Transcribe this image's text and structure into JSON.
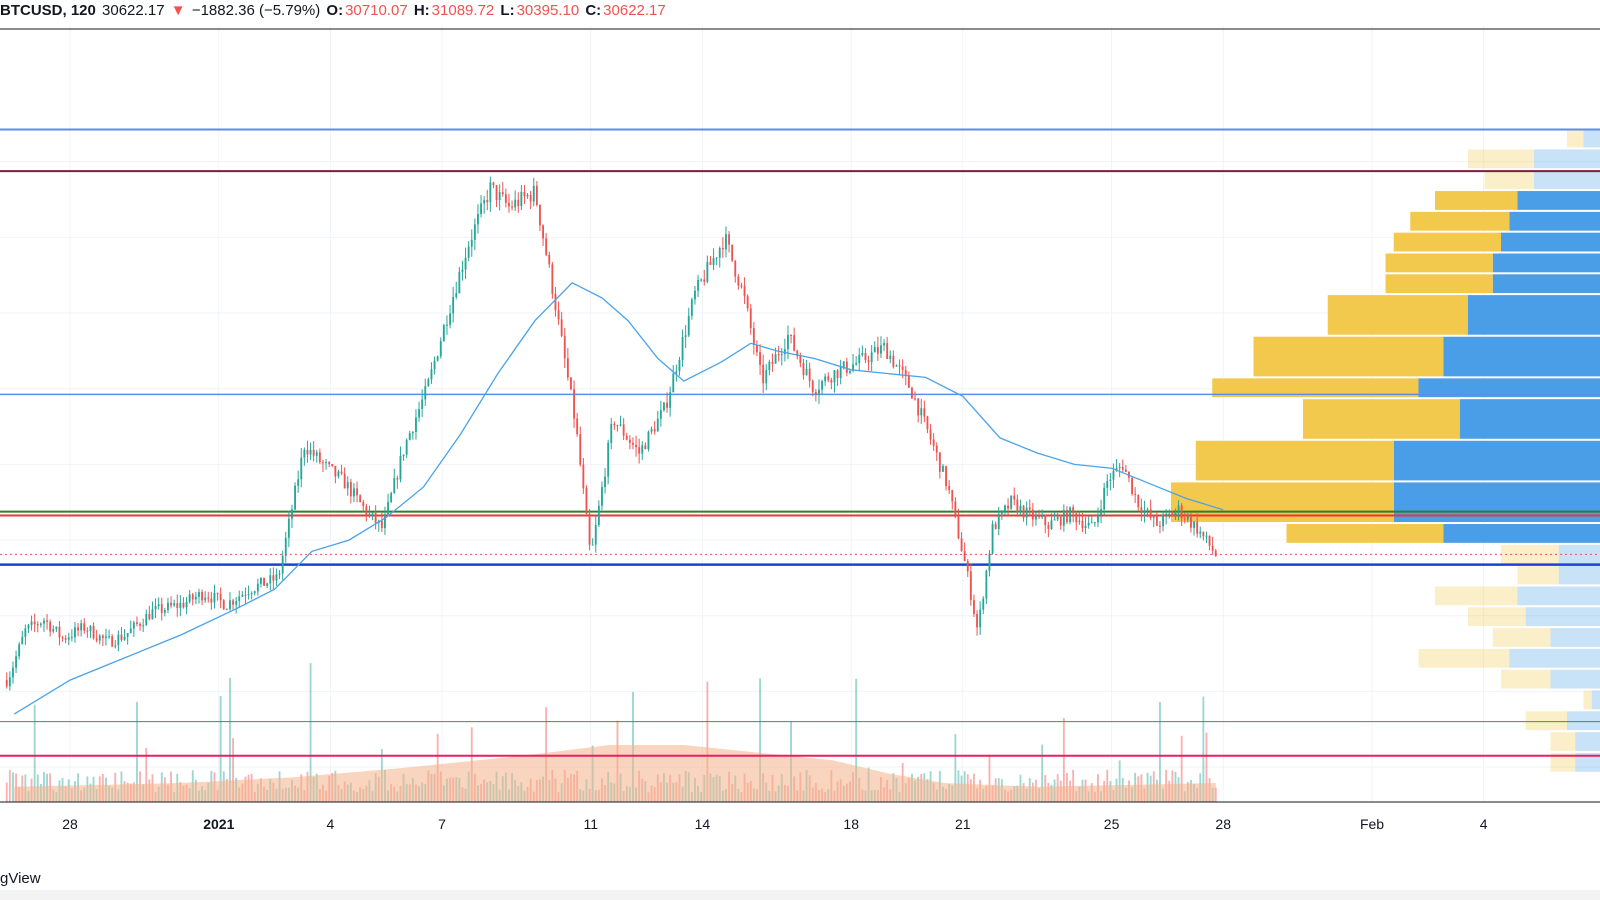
{
  "header": {
    "symbol": "BTCUSD, 120",
    "last": "30622.17",
    "change_arrow": "▼",
    "change": "−1882.36 (−5.79%)",
    "o_label": "O:",
    "o_value": "30710.07",
    "h_label": "H:",
    "h_value": "31089.72",
    "l_label": "L:",
    "l_value": "30395.10",
    "c_label": "C:",
    "c_value": "30622.17"
  },
  "watermark": "gView",
  "colors": {
    "up": "#26a69a",
    "down": "#ef5350",
    "ma": "#4aa3e8",
    "vp_up": "#f2c94c",
    "vp_down": "#4a9ee8",
    "vol_ma": "#f4b28a"
  },
  "icons": {
    "change_arrow": "triangle-down-icon"
  },
  "chart_data": {
    "type": "candlestick",
    "symbol": "BTCUSD",
    "timeframe": "120",
    "x_ticks": [
      {
        "label": "28",
        "t": 0.0
      },
      {
        "label": "2021",
        "t": 4.0,
        "bold": true
      },
      {
        "label": "4",
        "t": 7.0
      },
      {
        "label": "7",
        "t": 10.0
      },
      {
        "label": "11",
        "t": 14.0
      },
      {
        "label": "14",
        "t": 17.0
      },
      {
        "label": "18",
        "t": 21.0
      },
      {
        "label": "21",
        "t": 24.0
      },
      {
        "label": "25",
        "t": 28.0
      },
      {
        "label": "28",
        "t": 31.0
      },
      {
        "label": "Feb",
        "t": 35.0
      },
      {
        "label": "4",
        "t": 38.0
      }
    ],
    "x_range_days": [
      -1.5,
      39.2
    ],
    "last_bar_day": 30.8,
    "y_range": [
      24500,
      43000
    ],
    "price_path": [
      [
        -1.7,
        27300
      ],
      [
        -1.6,
        27500
      ],
      [
        -1.2,
        28600
      ],
      [
        -0.7,
        28900
      ],
      [
        -0.2,
        28400
      ],
      [
        0.4,
        28700
      ],
      [
        1.0,
        28300
      ],
      [
        1.5,
        28500
      ],
      [
        2.2,
        29100
      ],
      [
        3.0,
        29300
      ],
      [
        3.6,
        29600
      ],
      [
        4.2,
        29300
      ],
      [
        4.8,
        29700
      ],
      [
        5.6,
        30000
      ],
      [
        6.3,
        33500
      ],
      [
        6.8,
        33000
      ],
      [
        7.4,
        32500
      ],
      [
        8.0,
        31700
      ],
      [
        8.4,
        31300
      ],
      [
        9.0,
        33500
      ],
      [
        9.6,
        35000
      ],
      [
        10.1,
        36800
      ],
      [
        10.7,
        38800
      ],
      [
        11.3,
        40300
      ],
      [
        11.8,
        39800
      ],
      [
        12.5,
        40200
      ],
      [
        13.0,
        37500
      ],
      [
        13.6,
        34000
      ],
      [
        14.0,
        30500
      ],
      [
        14.6,
        34200
      ],
      [
        15.3,
        33300
      ],
      [
        16.0,
        34500
      ],
      [
        16.8,
        37500
      ],
      [
        17.6,
        39000
      ],
      [
        18.1,
        37500
      ],
      [
        18.6,
        35200
      ],
      [
        19.3,
        36400
      ],
      [
        20.0,
        35000
      ],
      [
        20.5,
        35400
      ],
      [
        21.2,
        35700
      ],
      [
        21.9,
        36100
      ],
      [
        22.6,
        35000
      ],
      [
        23.2,
        33500
      ],
      [
        23.6,
        32400
      ],
      [
        24.1,
        30200
      ],
      [
        24.4,
        28600
      ],
      [
        24.8,
        31300
      ],
      [
        25.3,
        32000
      ],
      [
        25.7,
        31700
      ],
      [
        26.3,
        31400
      ],
      [
        26.9,
        31700
      ],
      [
        27.5,
        31300
      ],
      [
        27.9,
        32600
      ],
      [
        28.3,
        33000
      ],
      [
        28.7,
        32000
      ],
      [
        29.2,
        31400
      ],
      [
        29.8,
        31800
      ],
      [
        30.3,
        31300
      ],
      [
        30.8,
        30622
      ]
    ],
    "moving_average": [
      [
        -1.5,
        26400
      ],
      [
        0.0,
        27300
      ],
      [
        1.5,
        27900
      ],
      [
        3.0,
        28500
      ],
      [
        4.5,
        29200
      ],
      [
        5.5,
        29700
      ],
      [
        6.5,
        30700
      ],
      [
        7.5,
        31000
      ],
      [
        8.5,
        31600
      ],
      [
        9.5,
        32400
      ],
      [
        10.5,
        33800
      ],
      [
        11.5,
        35400
      ],
      [
        12.5,
        36800
      ],
      [
        13.5,
        37800
      ],
      [
        14.3,
        37400
      ],
      [
        15.0,
        36800
      ],
      [
        15.8,
        35800
      ],
      [
        16.5,
        35200
      ],
      [
        17.5,
        35700
      ],
      [
        18.3,
        36200
      ],
      [
        19.0,
        36000
      ],
      [
        20.0,
        35800
      ],
      [
        21.0,
        35500
      ],
      [
        22.0,
        35400
      ],
      [
        23.0,
        35300
      ],
      [
        24.0,
        34800
      ],
      [
        25.0,
        33700
      ],
      [
        26.0,
        33300
      ],
      [
        27.0,
        33000
      ],
      [
        28.0,
        32900
      ],
      [
        29.0,
        32500
      ],
      [
        30.0,
        32100
      ],
      [
        31.0,
        31800
      ]
    ],
    "horizontal_levels": [
      {
        "price": 41850,
        "color": "#5b8def",
        "width": 2
      },
      {
        "price": 40750,
        "color": "#7a1f3d",
        "width": 2
      },
      {
        "price": 34850,
        "color": "#5b8def",
        "width": 1.5
      },
      {
        "price": 31750,
        "color": "#2e7d32",
        "width": 2
      },
      {
        "price": 31650,
        "color": "#e53935",
        "width": 2
      },
      {
        "price": 30350,
        "color": "#1e40d8",
        "width": 2.5
      },
      {
        "price": 26200,
        "color": "#558b2f",
        "width": 1
      },
      {
        "price": 25300,
        "color": "#e91e63",
        "width": 2
      }
    ],
    "last_price_line": 30622.17,
    "volume_profile": {
      "rows": [
        {
          "low": 41350,
          "high": 41850,
          "up": 0.02,
          "down": 0.02,
          "faded": true
        },
        {
          "low": 40800,
          "high": 41350,
          "up": 0.08,
          "down": 0.08,
          "faded": true
        },
        {
          "low": 40250,
          "high": 40800,
          "up": 0.06,
          "down": 0.08,
          "faded": true
        },
        {
          "low": 39700,
          "high": 40250,
          "up": 0.1,
          "down": 0.1,
          "faded": false
        },
        {
          "low": 39150,
          "high": 39700,
          "up": 0.12,
          "down": 0.11,
          "faded": false
        },
        {
          "low": 38600,
          "high": 39150,
          "up": 0.13,
          "down": 0.12,
          "faded": false
        },
        {
          "low": 38050,
          "high": 38600,
          "up": 0.13,
          "down": 0.13,
          "faded": false
        },
        {
          "low": 37500,
          "high": 38050,
          "up": 0.13,
          "down": 0.13,
          "faded": false
        },
        {
          "low": 36400,
          "high": 37500,
          "up": 0.17,
          "down": 0.16,
          "faded": false
        },
        {
          "low": 35300,
          "high": 36400,
          "up": 0.23,
          "down": 0.19,
          "faded": false
        },
        {
          "low": 34750,
          "high": 35300,
          "up": 0.25,
          "down": 0.22,
          "faded": false
        },
        {
          "low": 33650,
          "high": 34750,
          "up": 0.19,
          "down": 0.17,
          "faded": false
        },
        {
          "low": 32550,
          "high": 33650,
          "up": 0.24,
          "down": 0.25,
          "faded": false
        },
        {
          "low": 31450,
          "high": 32550,
          "up": 0.27,
          "down": 0.25,
          "faded": false
        },
        {
          "low": 30900,
          "high": 31450,
          "up": 0.19,
          "down": 0.19,
          "faded": false
        },
        {
          "low": 30350,
          "high": 30900,
          "up": 0.07,
          "down": 0.05,
          "faded": true
        },
        {
          "low": 29800,
          "high": 30350,
          "up": 0.05,
          "down": 0.05,
          "faded": true
        },
        {
          "low": 29250,
          "high": 29800,
          "up": 0.1,
          "down": 0.1,
          "faded": true
        },
        {
          "low": 28700,
          "high": 29250,
          "up": 0.07,
          "down": 0.09,
          "faded": true
        },
        {
          "low": 28150,
          "high": 28700,
          "up": 0.07,
          "down": 0.06,
          "faded": true
        },
        {
          "low": 27600,
          "high": 28150,
          "up": 0.11,
          "down": 0.11,
          "faded": true
        },
        {
          "low": 27050,
          "high": 27600,
          "up": 0.06,
          "down": 0.06,
          "faded": true
        },
        {
          "low": 26500,
          "high": 27050,
          "up": 0.01,
          "down": 0.01,
          "faded": true
        },
        {
          "low": 25950,
          "high": 26500,
          "up": 0.05,
          "down": 0.04,
          "faded": true
        },
        {
          "low": 25400,
          "high": 25950,
          "up": 0.03,
          "down": 0.03,
          "faded": true
        },
        {
          "low": 24850,
          "high": 25400,
          "up": 0.03,
          "down": 0.03,
          "faded": true
        }
      ]
    },
    "volume_ma_path": [
      [
        -1.5,
        0.08
      ],
      [
        3.0,
        0.1
      ],
      [
        6.0,
        0.13
      ],
      [
        9.0,
        0.18
      ],
      [
        12.0,
        0.24
      ],
      [
        14.5,
        0.3
      ],
      [
        16.5,
        0.3
      ],
      [
        18.5,
        0.26
      ],
      [
        20.5,
        0.22
      ],
      [
        22.0,
        0.15
      ],
      [
        23.5,
        0.1
      ],
      [
        26.0,
        0.08
      ],
      [
        28.5,
        0.09
      ],
      [
        30.8,
        0.1
      ]
    ]
  }
}
